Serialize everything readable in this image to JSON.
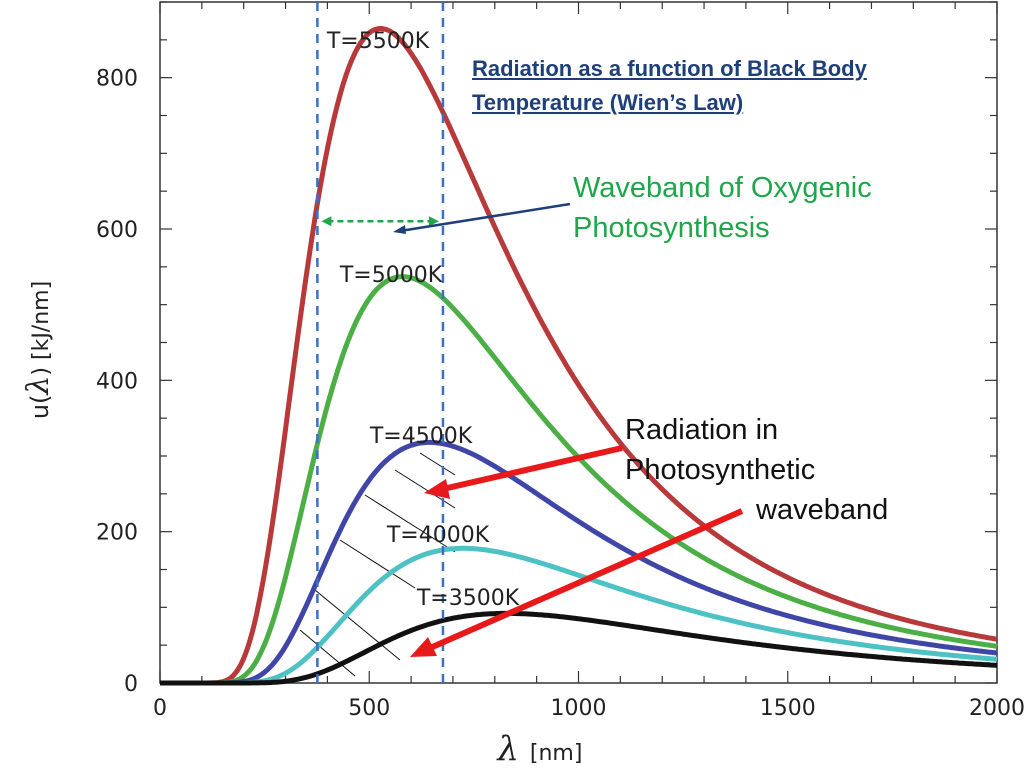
{
  "chart_data": {
    "type": "line",
    "title": "Radiation as a function of Black Body Temperature (Wien’s Law)",
    "title_lines": [
      "Radiation as a function of Black Body",
      "Temperature (Wien’s Law)"
    ],
    "xlabel": "λ [nm]",
    "xlabel_symbol": "λ",
    "xlabel_unit": "[nm]",
    "ylabel": "u(λ) [kJ/nm]",
    "ylabel_prefix": "u(",
    "ylabel_symbol": "λ",
    "ylabel_suffix": ")  [kJ/nm]",
    "xlim": [
      0,
      2000
    ],
    "ylim": [
      0,
      900
    ],
    "xticks": [
      0,
      500,
      1000,
      1500,
      2000
    ],
    "xtick_labels": [
      "0",
      "500",
      "1000",
      "1500",
      "2000"
    ],
    "yticks": [
      0,
      200,
      400,
      600,
      800
    ],
    "ytick_labels": [
      "0",
      "200",
      "400",
      "600",
      "800"
    ],
    "x_minor_step": 100,
    "y_minor_step": 50,
    "series": [
      {
        "name": "T=5500K",
        "temperature": 5500,
        "peak_x": 527,
        "peak_y": 865,
        "color": "#b8393a"
      },
      {
        "name": "T=5000K",
        "temperature": 5000,
        "peak_x": 580,
        "peak_y": 537,
        "color": "#4caf46"
      },
      {
        "name": "T=4500K",
        "temperature": 4500,
        "peak_x": 644,
        "peak_y": 318,
        "color": "#3f46a8"
      },
      {
        "name": "T=4000K",
        "temperature": 4000,
        "peak_x": 725,
        "peak_y": 178,
        "color": "#4ec1c4"
      },
      {
        "name": "T=3500K",
        "temperature": 3500,
        "peak_x": 828,
        "peak_y": 92,
        "color": "#111111"
      }
    ],
    "waveband_lines_x": [
      400,
      700
    ],
    "waveband_line_color": "#3a6fc4",
    "waveband_arrow_y": 630,
    "annotations": {
      "waveband_label": [
        "Waveband of Oxygenic",
        "Photosynthesis"
      ],
      "waveband_label_color": "#1fa64a",
      "radiation_label": [
        "Radiation in",
        "Photosynthetic",
        "waveband"
      ],
      "arrow_color": "#e8191b",
      "pointer_color": "#1f3f7a"
    }
  }
}
